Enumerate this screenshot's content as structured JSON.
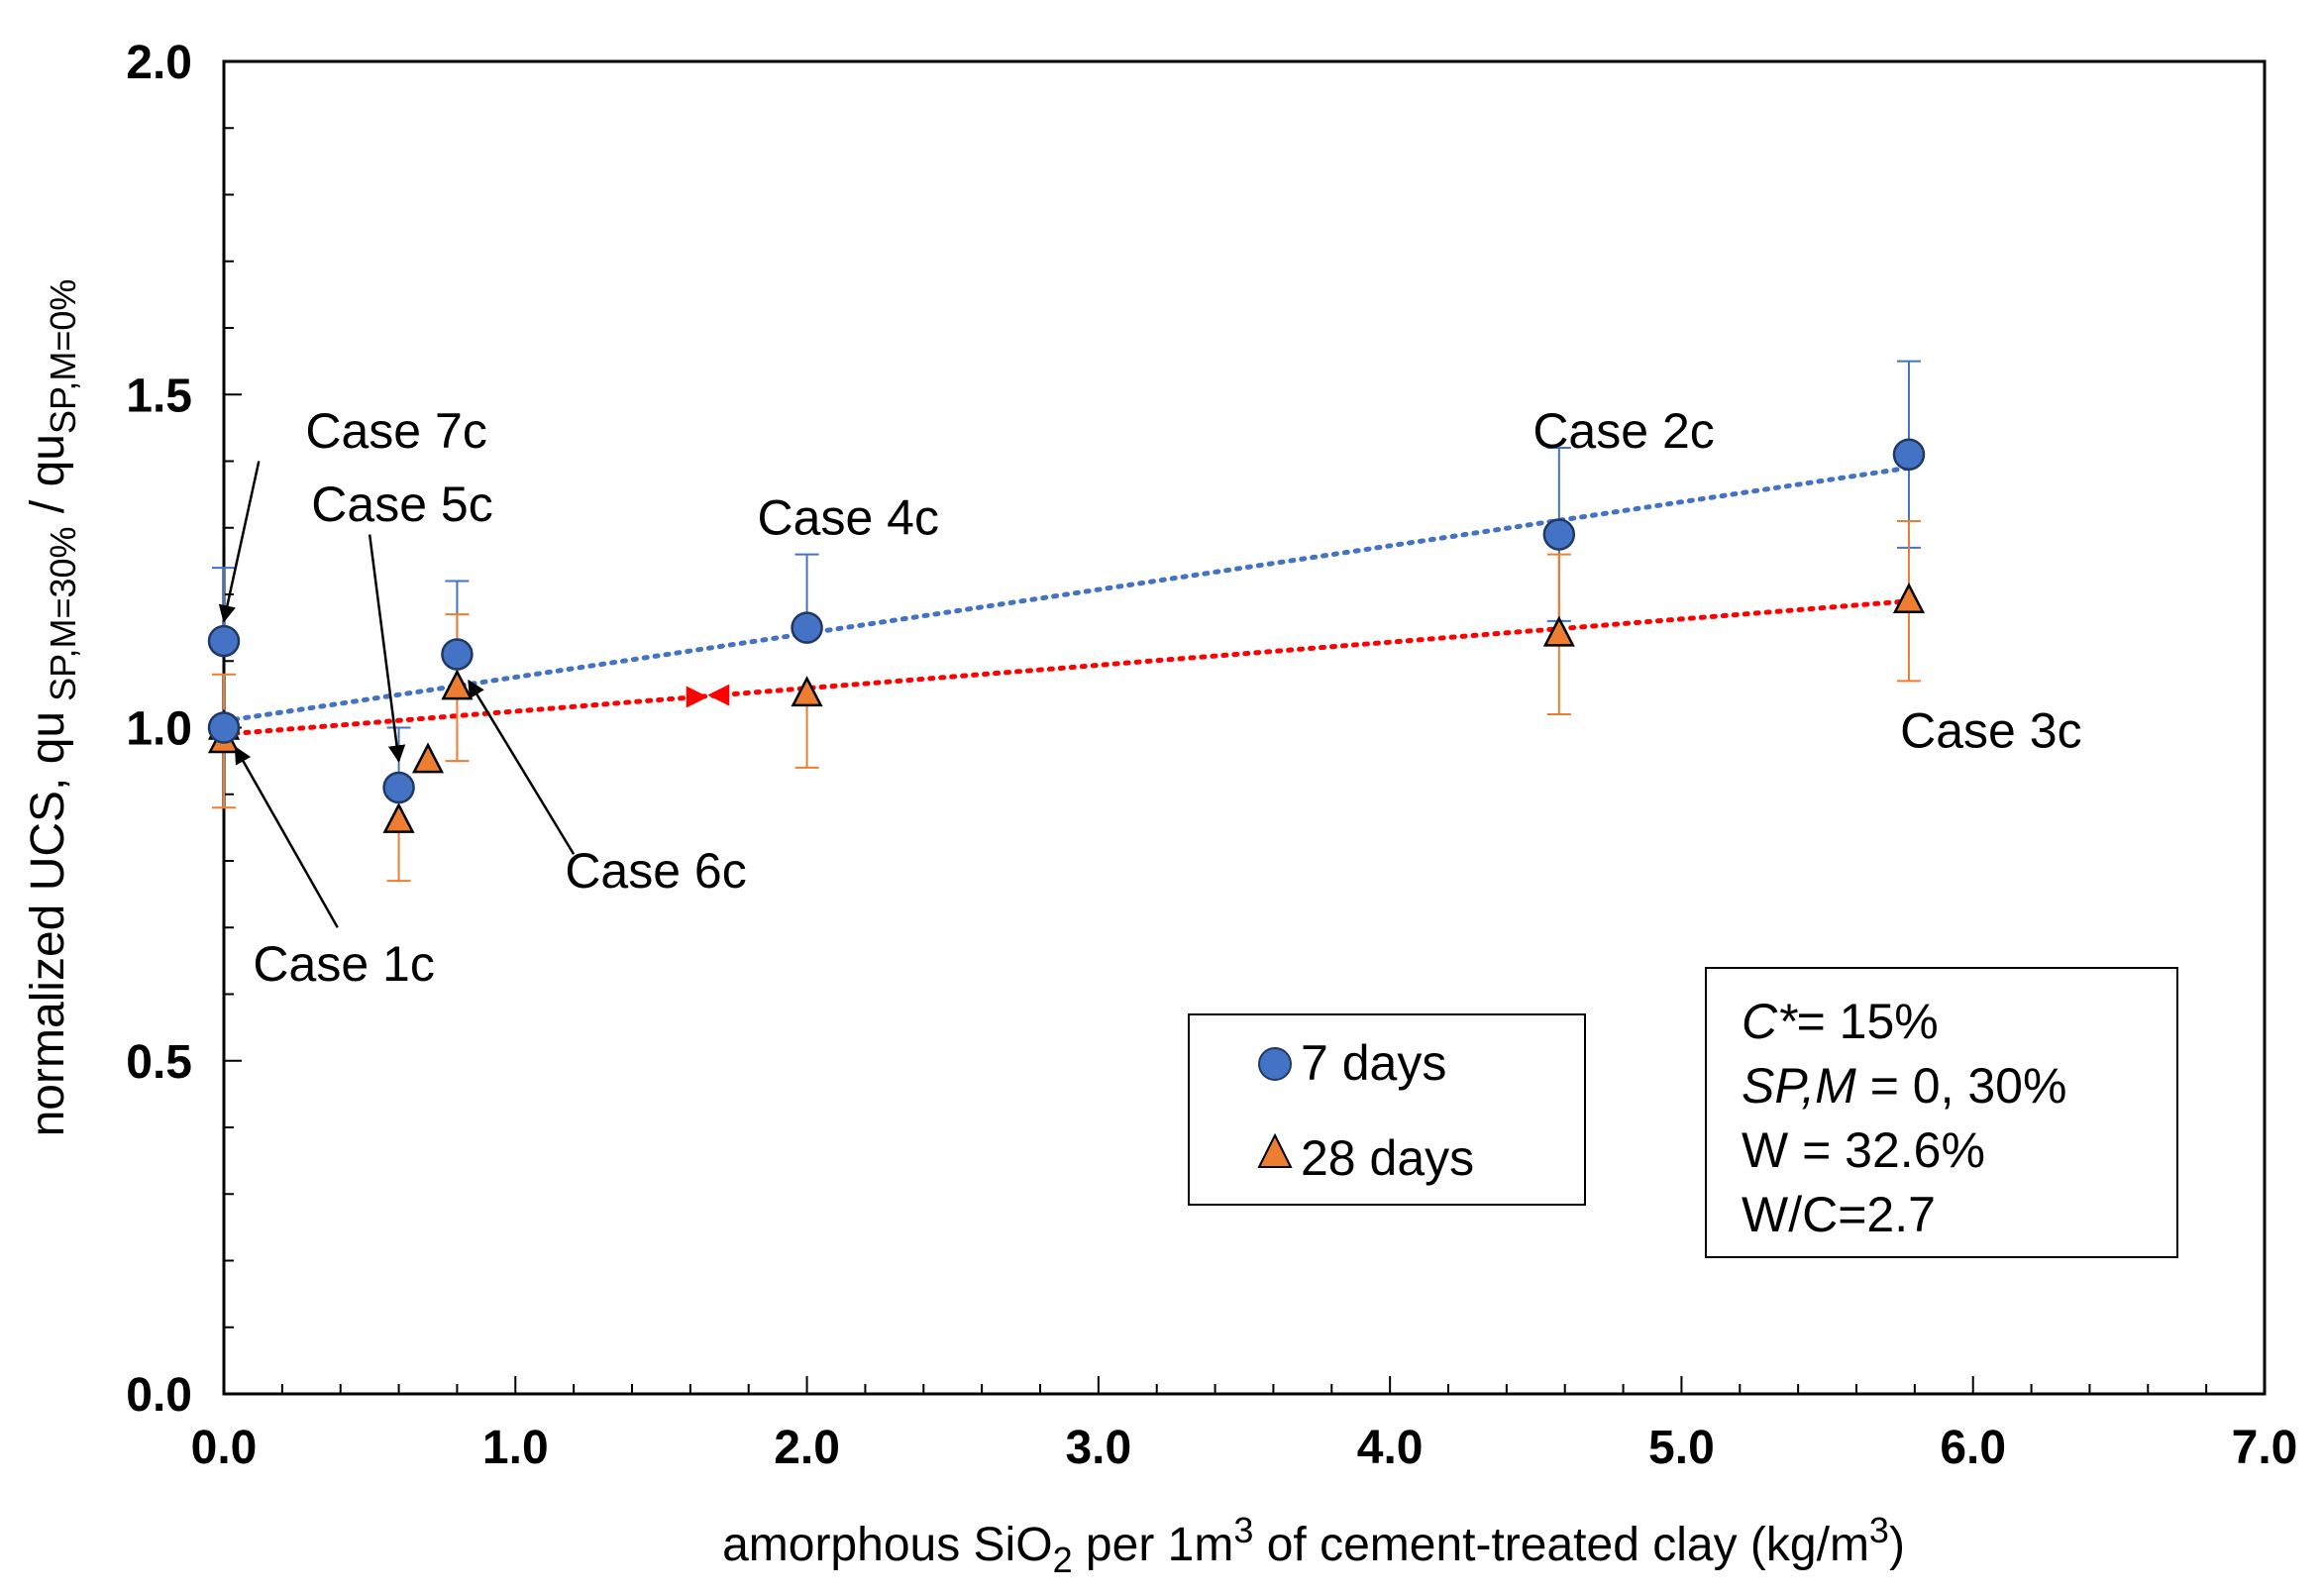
{
  "chart_data": {
    "type": "scatter",
    "xlabel": {
      "pre": "amorphous SiO",
      "sub": "2",
      "mid": " per 1m",
      "sup1": "3",
      "post": " of cement-treated clay (kg/m",
      "sup2": "3",
      "end": ")"
    },
    "ylabel": {
      "pre": "normalized UCS, qu",
      "sub1": " SP,M=30%",
      "mid": " / qu",
      "sub2": "SP,M=0%"
    },
    "xlim": [
      0,
      7
    ],
    "ylim": [
      0,
      2
    ],
    "xticks": [
      "0.0",
      "1.0",
      "2.0",
      "3.0",
      "4.0",
      "5.0",
      "6.0",
      "7.0"
    ],
    "yticks": [
      "0.0",
      "0.5",
      "1.0",
      "1.5",
      "2.0"
    ],
    "series": [
      {
        "name": "7 days",
        "marker": "circle",
        "color": "#4472C4",
        "errorbar_color": "#4472C4",
        "trend_color": "#4472C4",
        "points": [
          {
            "x": 0.0,
            "y": 1.0,
            "err_lo": 0.0,
            "err_hi": 0.0
          },
          {
            "x": 0.0,
            "y": 1.13,
            "err_lo": 0.0,
            "err_hi": 0.11
          },
          {
            "x": 0.6,
            "y": 0.91,
            "err_lo": 0.0,
            "err_hi": 0.09
          },
          {
            "x": 0.8,
            "y": 1.11,
            "err_lo": 0.0,
            "err_hi": 0.11
          },
          {
            "x": 2.0,
            "y": 1.15,
            "err_lo": 0.0,
            "err_hi": 0.11
          },
          {
            "x": 4.58,
            "y": 1.29,
            "err_lo": 0.13,
            "err_hi": 0.13
          },
          {
            "x": 5.78,
            "y": 1.41,
            "err_lo": 0.14,
            "err_hi": 0.14
          }
        ],
        "trend": {
          "x0": 0.0,
          "y0": 1.01,
          "x1": 5.78,
          "y1": 1.39
        }
      },
      {
        "name": "28 days",
        "marker": "triangle",
        "color": "#ED7D31",
        "errorbar_color": "#ED7D31",
        "trend_color": "#FF0000",
        "points": [
          {
            "x": 0.0,
            "y": 0.98,
            "err_lo": 0.1,
            "err_hi": 0.1
          },
          {
            "x": 0.0,
            "y": 1.0,
            "err_lo": 0.0,
            "err_hi": 0.0
          },
          {
            "x": 0.6,
            "y": 0.86,
            "err_lo": 0.09,
            "err_hi": 0.0
          },
          {
            "x": 0.7,
            "y": 0.95,
            "err_lo": 0.0,
            "err_hi": 0.0
          },
          {
            "x": 0.8,
            "y": 1.06,
            "err_lo": 0.11,
            "err_hi": 0.11
          },
          {
            "x": 2.0,
            "y": 1.05,
            "err_lo": 0.11,
            "err_hi": 0.0
          },
          {
            "x": 4.58,
            "y": 1.14,
            "err_lo": 0.12,
            "err_hi": 0.12
          },
          {
            "x": 5.78,
            "y": 1.19,
            "err_lo": 0.12,
            "err_hi": 0.12
          }
        ],
        "trend": {
          "x0": 0.0,
          "y0": 0.99,
          "x1": 5.78,
          "y1": 1.19
        },
        "trend_markers": [
          1.62,
          1.7
        ]
      }
    ],
    "annotations": [
      {
        "text": "Case 7c",
        "label_x": 0.28,
        "label_y": 1.42,
        "arrow_from": [
          0.12,
          1.4
        ],
        "arrow_to": [
          0.0,
          1.16
        ]
      },
      {
        "text": "Case 5c",
        "label_x": 0.3,
        "label_y": 1.31,
        "arrow_from": [
          0.5,
          1.29
        ],
        "arrow_to": [
          0.6,
          0.95
        ]
      },
      {
        "text": "Case 4c",
        "label_x": 1.83,
        "label_y": 1.29,
        "arrow_from": null,
        "arrow_to": null
      },
      {
        "text": "Case 2c",
        "label_x": 4.49,
        "label_y": 1.42,
        "arrow_from": null,
        "arrow_to": null
      },
      {
        "text": "Case 3c",
        "label_x": 5.75,
        "label_y": 0.97,
        "arrow_from": null,
        "arrow_to": null
      },
      {
        "text": "Case 6c",
        "label_x": 1.17,
        "label_y": 0.76,
        "arrow_from": [
          1.2,
          0.81
        ],
        "arrow_to": [
          0.84,
          1.07
        ]
      },
      {
        "text": "Case 1c",
        "label_x": 0.1,
        "label_y": 0.62,
        "arrow_from": [
          0.39,
          0.7
        ],
        "arrow_to": [
          0.04,
          0.97
        ]
      }
    ],
    "legend": {
      "position": "lower-center",
      "entries": [
        "7 days",
        "28 days"
      ]
    },
    "info_box": {
      "lines": [
        {
          "it": "C*",
          "rest": "= 15%"
        },
        {
          "it": "SP,M",
          "rest": " = 0, 30%"
        },
        {
          "it": "",
          "rest": "W = 32.6%"
        },
        {
          "it": "",
          "rest": "W/C=2.7"
        }
      ]
    }
  }
}
